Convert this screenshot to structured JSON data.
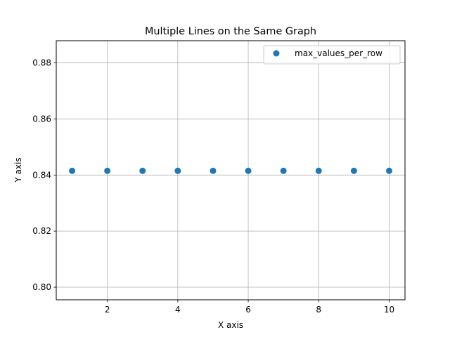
{
  "chart_data": {
    "type": "scatter",
    "title": "Multiple Lines on the Same Graph",
    "xlabel": "X axis",
    "ylabel": "Y axis",
    "xlim": [
      0.55,
      10.45
    ],
    "ylim": [
      0.7955,
      0.8879
    ],
    "xticks": [
      2,
      4,
      6,
      8,
      10
    ],
    "yticks": [
      0.8,
      0.82,
      0.84,
      0.86,
      0.88
    ],
    "xtick_labels": [
      "2",
      "4",
      "6",
      "8",
      "10"
    ],
    "ytick_labels": [
      "0.80",
      "0.82",
      "0.84",
      "0.86",
      "0.88"
    ],
    "grid": true,
    "legend_position": "top-right",
    "series": [
      {
        "name": "max_values_per_row",
        "color": "#1f77b4",
        "x": [
          1,
          2,
          3,
          4,
          5,
          6,
          7,
          8,
          9,
          10
        ],
        "y": [
          0.8415,
          0.8415,
          0.8415,
          0.8415,
          0.8415,
          0.8415,
          0.8415,
          0.8415,
          0.8415,
          0.8415
        ]
      }
    ]
  }
}
